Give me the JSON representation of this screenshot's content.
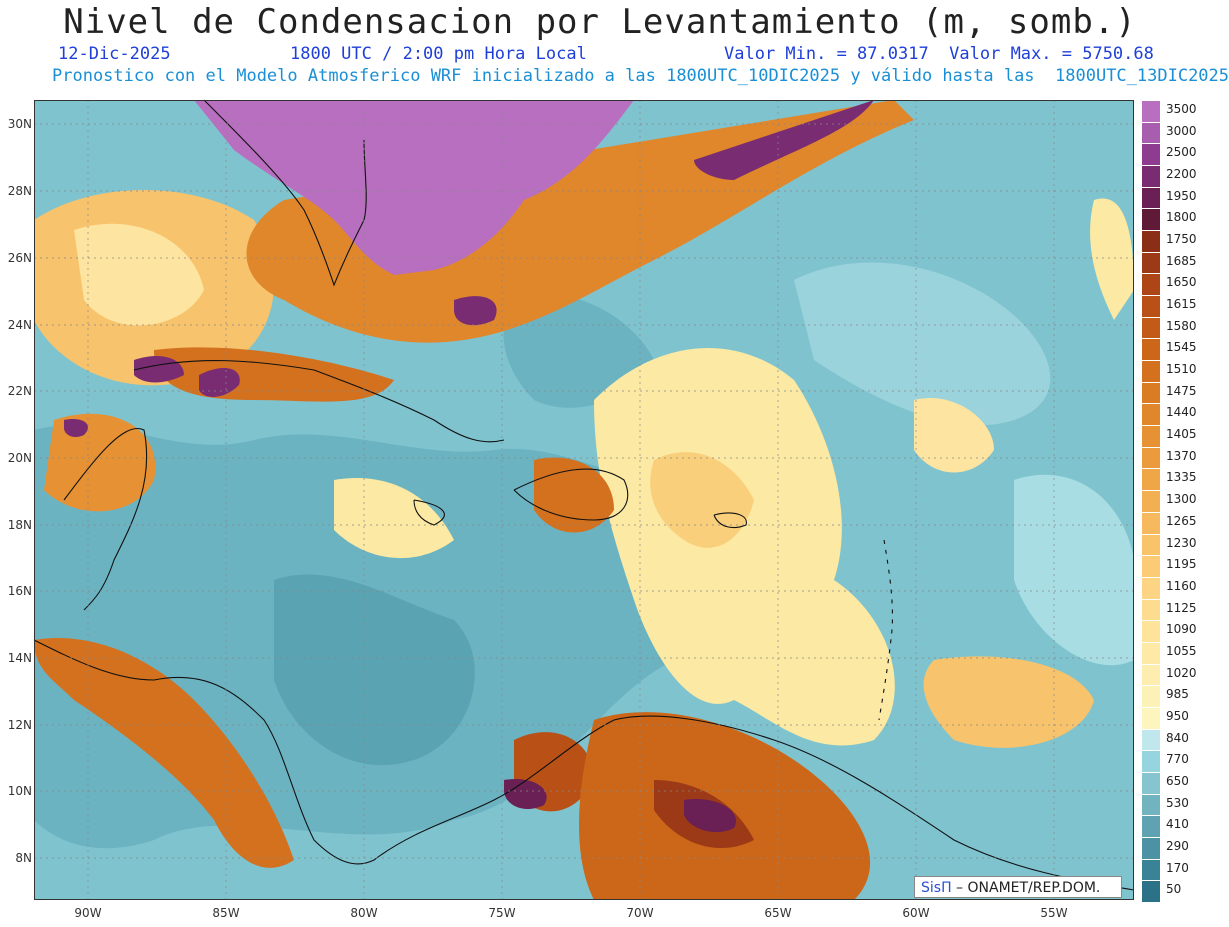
{
  "header": {
    "title": "Nivel de Condensacion por Levantamiento (m, somb.)",
    "date": "12-Dic-2025",
    "time": "1800 UTC / 2:00 pm Hora Local",
    "minmax": "Valor Min. = 87.0317  Valor Max. = 5750.68",
    "model_info": "Pronostico con el Modelo Atmosferico WRF inicializado a las 1800UTC_10DIC2025 y válido hasta las  1800UTC_13DIC2025"
  },
  "axes": {
    "lat_labels": [
      "30N",
      "28N",
      "26N",
      "24N",
      "22N",
      "20N",
      "18N",
      "16N",
      "14N",
      "12N",
      "10N",
      "8N"
    ],
    "lon_labels": [
      "90W",
      "85W",
      "80W",
      "75W",
      "70W",
      "65W",
      "60W",
      "55W"
    ]
  },
  "legend": {
    "labels": [
      "3500",
      "3000",
      "2500",
      "2200",
      "1950",
      "1800",
      "1750",
      "1685",
      "1650",
      "1615",
      "1580",
      "1545",
      "1510",
      "1475",
      "1440",
      "1405",
      "1370",
      "1335",
      "1300",
      "1265",
      "1230",
      "1195",
      "1160",
      "1125",
      "1090",
      "1055",
      "1020",
      "985",
      "950",
      "840",
      "770",
      "650",
      "530",
      "410",
      "290",
      "170",
      "50"
    ],
    "colors": [
      "#b86fc0",
      "#a75eae",
      "#8e3c8f",
      "#7a2c72",
      "#6a1f55",
      "#5e1a37",
      "#8a2e17",
      "#9c3917",
      "#ad4517",
      "#b95016",
      "#c25b18",
      "#cc6619",
      "#d3711f",
      "#da7c24",
      "#e0862b",
      "#e69133",
      "#eb9b3c",
      "#efa647",
      "#f3b052",
      "#f6b95d",
      "#f8c369",
      "#fbcb76",
      "#fcd483",
      "#fedc8f",
      "#fee39b",
      "#fee9a6",
      "#fdeeb0",
      "#fcf2b7",
      "#fcf5bd",
      "#bfe7ec",
      "#96d4df",
      "#86c4cf",
      "#72b3c0",
      "#5fa2b2",
      "#4d92a4",
      "#3a8296",
      "#2b7288"
    ]
  },
  "credit": {
    "brand": "SisΠ",
    "org": " – ONAMET/REP.DOM."
  }
}
